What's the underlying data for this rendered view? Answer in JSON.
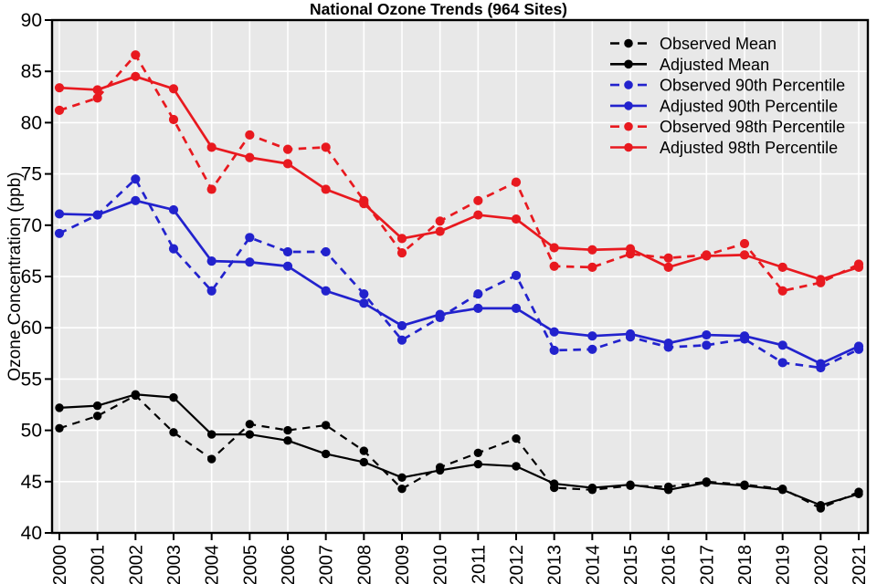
{
  "chart_data": {
    "type": "line",
    "title": "National Ozone Trends (964 Sites)",
    "xlabel": "",
    "ylabel": "Ozone Concentration (ppb)",
    "x": [
      2000,
      2001,
      2002,
      2003,
      2004,
      2005,
      2006,
      2007,
      2008,
      2009,
      2010,
      2011,
      2012,
      2013,
      2014,
      2015,
      2016,
      2017,
      2018,
      2019,
      2020,
      2021
    ],
    "ylim": [
      40,
      90
    ],
    "yticks": [
      40,
      45,
      50,
      55,
      60,
      65,
      70,
      75,
      80,
      85,
      90
    ],
    "grid": true,
    "plot_background": "#e8e8e8",
    "grid_color": "#ffffff",
    "frame_color": "#000000",
    "legend_position": "top-right-inside",
    "colors": {
      "mean": "#000000",
      "p90": "#2222cd",
      "p98": "#e8191f"
    },
    "series": [
      {
        "name": "Observed Mean",
        "color": "#000000",
        "line_style": "dashed",
        "values": [
          50.2,
          51.4,
          53.4,
          49.8,
          47.2,
          50.6,
          50.0,
          50.5,
          48.0,
          44.3,
          46.4,
          47.8,
          49.2,
          44.4,
          44.2,
          44.6,
          44.5,
          45.0,
          44.7,
          44.3,
          42.4,
          44.0
        ]
      },
      {
        "name": "Adjusted Mean",
        "color": "#000000",
        "line_style": "solid",
        "values": [
          52.2,
          52.4,
          53.5,
          53.2,
          49.6,
          49.6,
          49.0,
          47.7,
          46.9,
          45.4,
          46.1,
          46.7,
          46.5,
          44.8,
          44.4,
          44.7,
          44.2,
          44.9,
          44.6,
          44.2,
          42.7,
          43.8
        ]
      },
      {
        "name": "Observed 90th Percentile",
        "color": "#2222cd",
        "line_style": "dashed",
        "values": [
          69.2,
          71.0,
          74.5,
          67.7,
          63.6,
          68.8,
          67.4,
          67.4,
          63.3,
          58.8,
          61.0,
          63.3,
          65.1,
          57.8,
          57.9,
          59.1,
          58.1,
          58.3,
          58.9,
          56.6,
          56.1,
          57.9
        ]
      },
      {
        "name": "Adjusted 90th Percentile",
        "color": "#2222cd",
        "line_style": "solid",
        "values": [
          71.1,
          71.0,
          72.4,
          71.5,
          66.5,
          66.4,
          66.0,
          63.6,
          62.4,
          60.2,
          61.3,
          61.9,
          61.9,
          59.6,
          59.2,
          59.4,
          58.5,
          59.3,
          59.2,
          58.3,
          56.5,
          58.2
        ]
      },
      {
        "name": "Observed 98th Percentile",
        "color": "#e8191f",
        "line_style": "dashed",
        "values": [
          81.2,
          82.4,
          86.6,
          80.3,
          73.5,
          78.8,
          77.4,
          77.6,
          72.4,
          67.3,
          70.4,
          72.4,
          74.2,
          66.0,
          65.9,
          67.2,
          66.8,
          67.1,
          68.2,
          63.6,
          64.4,
          66.2
        ]
      },
      {
        "name": "Adjusted 98th Percentile",
        "color": "#e8191f",
        "line_style": "solid",
        "values": [
          83.4,
          83.2,
          84.5,
          83.3,
          77.6,
          76.6,
          76.0,
          73.5,
          72.1,
          68.7,
          69.4,
          71.0,
          70.6,
          67.8,
          67.6,
          67.7,
          65.9,
          67.0,
          67.1,
          65.9,
          64.7,
          65.9
        ]
      }
    ]
  }
}
